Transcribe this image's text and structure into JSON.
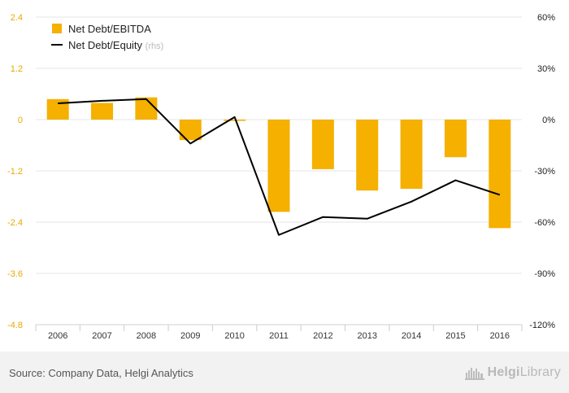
{
  "chart_data": {
    "type": "bar",
    "categories": [
      "2006",
      "2007",
      "2008",
      "2009",
      "2010",
      "2011",
      "2012",
      "2013",
      "2014",
      "2015",
      "2016"
    ],
    "series": [
      {
        "name": "Net Debt/EBITDA",
        "type": "bar",
        "axis": "left",
        "color": "#f5b000",
        "values": [
          0.48,
          0.39,
          0.52,
          -0.48,
          -0.03,
          -2.16,
          -1.16,
          -1.66,
          -1.62,
          -0.88,
          -2.54
        ]
      },
      {
        "name": "Net Debt/Equity",
        "type": "line",
        "axis": "right",
        "color": "#000000",
        "values": [
          9.5,
          11.0,
          12.0,
          -14.0,
          1.5,
          -67.5,
          -57.0,
          -58.0,
          -48.0,
          -35.5,
          -44.0
        ]
      }
    ],
    "legend": [
      {
        "label": "Net Debt/EBITDA",
        "suffix": "",
        "marker": "square"
      },
      {
        "label": "Net Debt/Equity",
        "suffix": "(rhs)",
        "marker": "line"
      }
    ],
    "legend_position": "top-left",
    "y_left": {
      "min": -4.8,
      "max": 2.4,
      "ticks": [
        "2.4",
        "1.2",
        "0",
        "-1.2",
        "-2.4",
        "-3.6",
        "-4.8"
      ],
      "tick_color": "#e8a800"
    },
    "y_right": {
      "min": -120,
      "max": 60,
      "ticks": [
        "60%",
        "30%",
        "0%",
        "-30%",
        "-60%",
        "-90%",
        "-120%"
      ]
    },
    "grid": true
  },
  "footer": {
    "source": "Source: Company Data, Helgi Analytics",
    "logo_bold": "Helgi",
    "logo_light": "Library"
  }
}
